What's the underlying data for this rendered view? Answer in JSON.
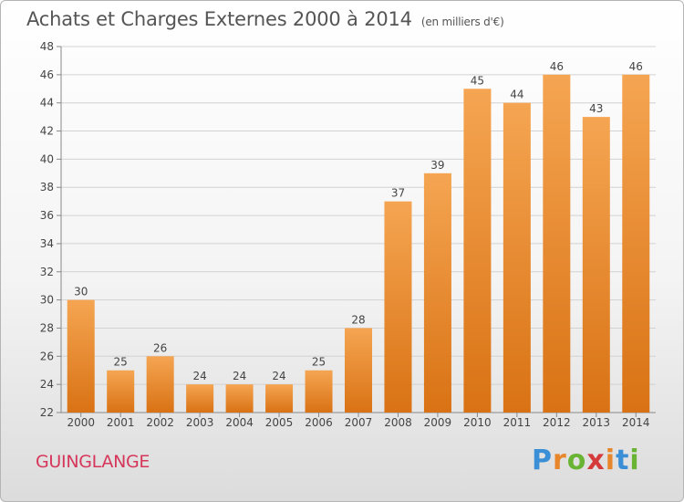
{
  "title": "Achats et Charges Externes 2000 à 2014",
  "title_unit": "(en milliers d'€)",
  "commune": "GUINGLANGE",
  "logo": {
    "letters": [
      "P",
      "r",
      "o",
      "x",
      "i",
      "t",
      "i"
    ],
    "colors": [
      "#3b8fd6",
      "#e8862c",
      "#6ab435",
      "#d63b3b",
      "#e8862c",
      "#3b8fd6",
      "#6ab435"
    ]
  },
  "chart_data": {
    "type": "bar",
    "categories": [
      "2000",
      "2001",
      "2002",
      "2003",
      "2004",
      "2005",
      "2006",
      "2007",
      "2008",
      "2009",
      "2010",
      "2011",
      "2012",
      "2013",
      "2014"
    ],
    "values": [
      30,
      25,
      26,
      24,
      24,
      24,
      25,
      28,
      37,
      39,
      45,
      44,
      46,
      43,
      46
    ],
    "ylim": [
      22,
      48
    ],
    "yticks": [
      22,
      24,
      26,
      28,
      30,
      32,
      34,
      36,
      38,
      40,
      42,
      44,
      46,
      48
    ],
    "grid": true,
    "bar_color_top": "#f5a552",
    "bar_color_bottom": "#d97214"
  }
}
